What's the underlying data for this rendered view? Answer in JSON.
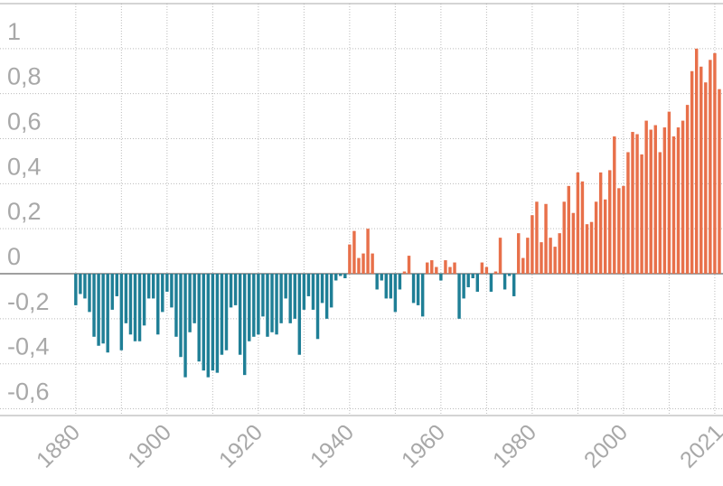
{
  "chart_data": {
    "type": "bar",
    "x": [
      1880,
      1881,
      1882,
      1883,
      1884,
      1885,
      1886,
      1887,
      1888,
      1889,
      1890,
      1891,
      1892,
      1893,
      1894,
      1895,
      1896,
      1897,
      1898,
      1899,
      1900,
      1901,
      1902,
      1903,
      1904,
      1905,
      1906,
      1907,
      1908,
      1909,
      1910,
      1911,
      1912,
      1913,
      1914,
      1915,
      1916,
      1917,
      1918,
      1919,
      1920,
      1921,
      1922,
      1923,
      1924,
      1925,
      1926,
      1927,
      1928,
      1929,
      1930,
      1931,
      1932,
      1933,
      1934,
      1935,
      1936,
      1937,
      1938,
      1939,
      1940,
      1941,
      1942,
      1943,
      1944,
      1945,
      1946,
      1947,
      1948,
      1949,
      1950,
      1951,
      1952,
      1953,
      1954,
      1955,
      1956,
      1957,
      1958,
      1959,
      1960,
      1961,
      1962,
      1963,
      1964,
      1965,
      1966,
      1967,
      1968,
      1969,
      1970,
      1971,
      1972,
      1973,
      1974,
      1975,
      1976,
      1977,
      1978,
      1979,
      1980,
      1981,
      1982,
      1983,
      1984,
      1985,
      1986,
      1987,
      1988,
      1989,
      1990,
      1991,
      1992,
      1993,
      1994,
      1995,
      1996,
      1997,
      1998,
      1999,
      2000,
      2001,
      2002,
      2003,
      2004,
      2005,
      2006,
      2007,
      2008,
      2009,
      2010,
      2011,
      2012,
      2013,
      2014,
      2015,
      2016,
      2017,
      2018,
      2019,
      2020,
      2021
    ],
    "values": [
      -0.14,
      -0.09,
      -0.11,
      -0.17,
      -0.28,
      -0.32,
      -0.31,
      -0.35,
      -0.16,
      -0.1,
      -0.34,
      -0.22,
      -0.27,
      -0.3,
      -0.3,
      -0.23,
      -0.11,
      -0.11,
      -0.27,
      -0.17,
      -0.08,
      -0.15,
      -0.28,
      -0.37,
      -0.46,
      -0.26,
      -0.22,
      -0.39,
      -0.43,
      -0.46,
      -0.43,
      -0.44,
      -0.36,
      -0.34,
      -0.15,
      -0.14,
      -0.36,
      -0.45,
      -0.3,
      -0.28,
      -0.27,
      -0.19,
      -0.28,
      -0.26,
      -0.27,
      -0.22,
      -0.11,
      -0.22,
      -0.2,
      -0.36,
      -0.16,
      -0.1,
      -0.16,
      -0.29,
      -0.13,
      -0.2,
      -0.15,
      -0.03,
      -0.01,
      -0.02,
      0.13,
      0.19,
      0.07,
      0.09,
      0.2,
      0.09,
      -0.07,
      -0.03,
      -0.11,
      -0.11,
      -0.17,
      -0.07,
      0.01,
      0.08,
      -0.13,
      -0.14,
      -0.19,
      0.05,
      0.06,
      0.03,
      -0.03,
      0.06,
      0.03,
      0.05,
      -0.2,
      -0.11,
      -0.06,
      -0.02,
      -0.08,
      0.05,
      0.03,
      -0.08,
      0.01,
      0.16,
      -0.07,
      -0.01,
      -0.1,
      0.18,
      0.07,
      0.16,
      0.26,
      0.32,
      0.14,
      0.31,
      0.16,
      0.12,
      0.18,
      0.32,
      0.39,
      0.27,
      0.45,
      0.41,
      0.22,
      0.23,
      0.32,
      0.45,
      0.33,
      0.46,
      0.61,
      0.38,
      0.39,
      0.54,
      0.63,
      0.62,
      0.53,
      0.68,
      0.64,
      0.66,
      0.54,
      0.65,
      0.72,
      0.61,
      0.65,
      0.68,
      0.75,
      0.9,
      1.0,
      0.92,
      0.85,
      0.95,
      0.98,
      0.82
    ],
    "positive_color": "#e8704a",
    "negative_color": "#1f7f96",
    "xlim": [
      1863.4,
      2021.8
    ],
    "xticks": [
      1880,
      1900,
      1920,
      1940,
      1960,
      1980,
      2000,
      2021
    ],
    "x_gridlines": [
      1880,
      1890,
      1900,
      1910,
      1920,
      1930,
      1940,
      1950,
      1960,
      1970,
      1980,
      1990,
      2000,
      2010,
      2020
    ],
    "ylim": [
      -0.63,
      1.2
    ],
    "yticks": [
      1,
      {
        "value": 0.8,
        "label": "0,8"
      },
      {
        "value": 0.6,
        "label": "0,6"
      },
      {
        "value": 0.4,
        "label": "0,4"
      },
      {
        "value": 0.2,
        "label": "0,2"
      },
      0,
      {
        "value": -0.2,
        "label": "-0,2"
      },
      {
        "value": -0.4,
        "label": "-0,4"
      },
      {
        "value": -0.6,
        "label": "-0,6"
      }
    ],
    "grid": true
  }
}
